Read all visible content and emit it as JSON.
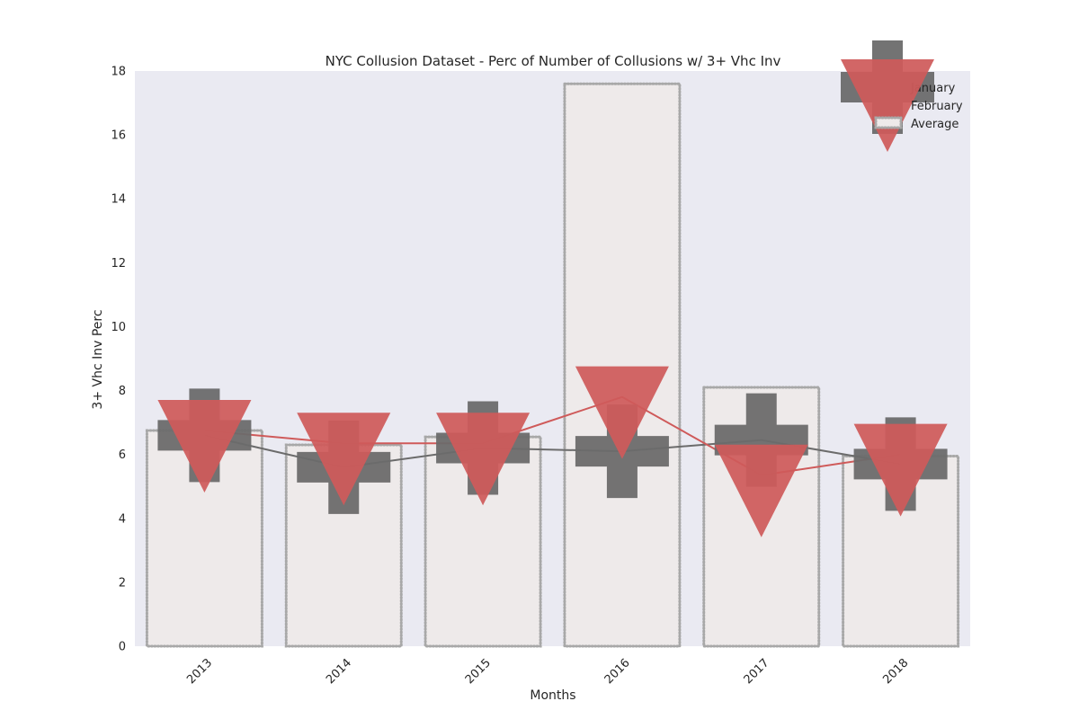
{
  "chart_data": {
    "type": "bar",
    "title": "NYC Collusion Dataset - Perc of Number of Collusions w/ 3+ Vhc Inv",
    "xlabel": "Months",
    "ylabel": "3+ Vhc Inv Perc",
    "ylim": [
      0,
      18
    ],
    "yticks": [
      "0",
      "2",
      "4",
      "6",
      "8",
      "10",
      "12",
      "14",
      "16",
      "18"
    ],
    "categories": [
      "2013",
      "2014",
      "2015",
      "2016",
      "2017",
      "2018"
    ],
    "grid": false,
    "legend": {
      "position": "top-right"
    },
    "series": [
      {
        "name": "January",
        "kind": "line",
        "marker": "plus",
        "values": [
          6.6,
          5.6,
          6.2,
          6.1,
          6.45,
          5.7
        ],
        "color": "#6b6b6b"
      },
      {
        "name": "February",
        "kind": "line",
        "marker": "triangle-down",
        "values": [
          6.75,
          6.35,
          6.35,
          7.8,
          5.35,
          6.0
        ],
        "color": "#cf5a5a"
      },
      {
        "name": "Average",
        "kind": "bar",
        "values": [
          6.75,
          6.3,
          6.55,
          17.6,
          8.1,
          5.95
        ],
        "color": "#eeeaea"
      }
    ]
  }
}
